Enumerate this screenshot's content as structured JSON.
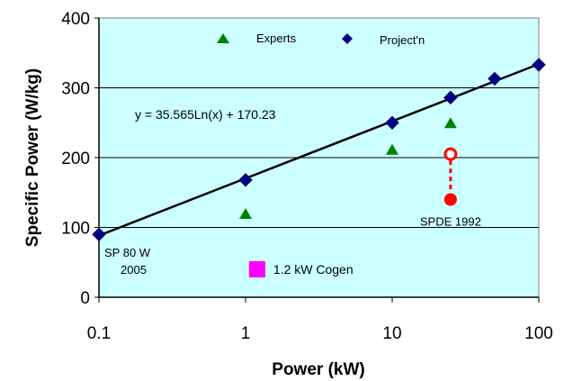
{
  "chart_data": {
    "type": "scatter",
    "xlabel": "Power (kW)",
    "ylabel": "Specific Power (W/kg)",
    "x_scale": "log",
    "xlim": [
      0.1,
      100
    ],
    "ylim": [
      0,
      400
    ],
    "x_ticks": [
      "0.1",
      "1",
      "10",
      "100"
    ],
    "y_ticks": [
      "0",
      "100",
      "200",
      "300",
      "400"
    ],
    "grid": "horizontal",
    "plot_background": "#ccffff",
    "legend": {
      "position": "top",
      "entries": [
        {
          "label": "Experts",
          "marker": "triangle",
          "color": "#008000"
        },
        {
          "label": "Project'n",
          "marker": "diamond",
          "color": "#000080"
        }
      ]
    },
    "series": [
      {
        "name": "Experts",
        "marker": "triangle",
        "color": "#008000",
        "points": [
          {
            "x": 1,
            "y": 120
          },
          {
            "x": 10,
            "y": 212
          },
          {
            "x": 25,
            "y": 250
          }
        ]
      },
      {
        "name": "Project'n",
        "marker": "diamond",
        "color": "#000080",
        "points": [
          {
            "x": 0.1,
            "y": 90
          },
          {
            "x": 1,
            "y": 168
          },
          {
            "x": 10,
            "y": 250
          },
          {
            "x": 25,
            "y": 286
          },
          {
            "x": 50,
            "y": 313
          },
          {
            "x": 100,
            "y": 333
          }
        ]
      }
    ],
    "trendline": {
      "label": "y = 35.565Ln(x) + 170.23",
      "a": 35.565,
      "b": 170.23,
      "color": "#000000"
    },
    "annotations": {
      "sp80": {
        "line1": "SP 80 W",
        "line2": "2005"
      },
      "cogen": {
        "label": "1.2 kW Cogen",
        "x": 1.2,
        "y": 40,
        "color": "#ff00ff"
      },
      "spde": {
        "label": "SPDE 1992",
        "x": 25,
        "open_y": 205,
        "filled_y": 140,
        "color": "#ff0000"
      }
    }
  }
}
